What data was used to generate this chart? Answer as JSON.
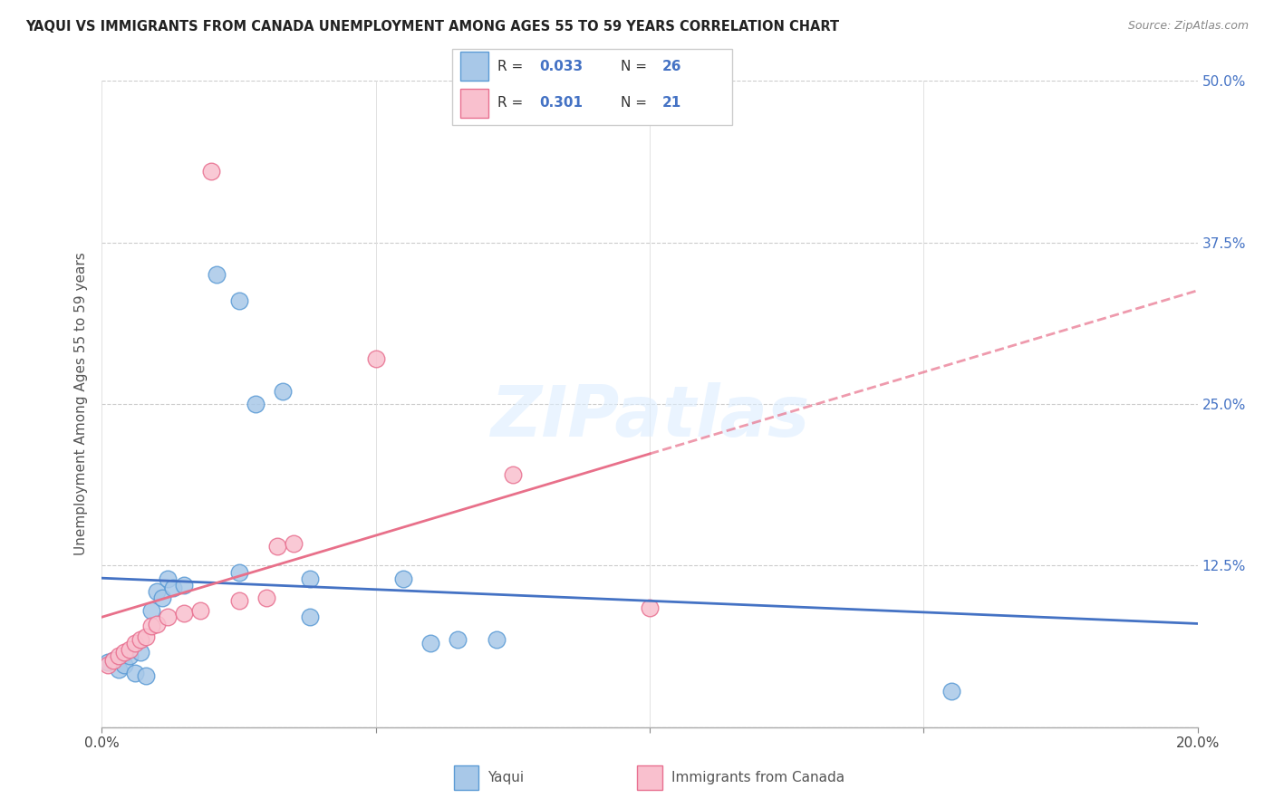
{
  "title": "YAQUI VS IMMIGRANTS FROM CANADA UNEMPLOYMENT AMONG AGES 55 TO 59 YEARS CORRELATION CHART",
  "source": "Source: ZipAtlas.com",
  "ylabel": "Unemployment Among Ages 55 to 59 years",
  "xlim": [
    0.0,
    0.2
  ],
  "ylim": [
    0.0,
    0.5
  ],
  "xticks": [
    0.0,
    0.05,
    0.1,
    0.15,
    0.2
  ],
  "yticks": [
    0.0,
    0.125,
    0.25,
    0.375,
    0.5
  ],
  "ytick_labels": [
    "",
    "12.5%",
    "25.0%",
    "37.5%",
    "50.0%"
  ],
  "xtick_labels": [
    "0.0%",
    "",
    "",
    "",
    "20.0%"
  ],
  "legend_r1": "0.033",
  "legend_n1": "26",
  "legend_r2": "0.301",
  "legend_n2": "21",
  "color_yaqui_fill": "#a8c8e8",
  "color_yaqui_edge": "#5b9bd5",
  "color_canada_fill": "#f9c0ce",
  "color_canada_edge": "#e87090",
  "line_color_yaqui": "#4472c4",
  "line_color_canada": "#e8708a",
  "yaqui_x": [
    0.001,
    0.002,
    0.003,
    0.004,
    0.005,
    0.006,
    0.007,
    0.008,
    0.009,
    0.01,
    0.011,
    0.012,
    0.013,
    0.015,
    0.021,
    0.025,
    0.028,
    0.033,
    0.038,
    0.055,
    0.06,
    0.065,
    0.072,
    0.038,
    0.025,
    0.155
  ],
  "yaqui_y": [
    0.05,
    0.052,
    0.045,
    0.048,
    0.055,
    0.042,
    0.058,
    0.04,
    0.09,
    0.105,
    0.1,
    0.115,
    0.108,
    0.11,
    0.35,
    0.33,
    0.25,
    0.26,
    0.115,
    0.115,
    0.065,
    0.068,
    0.068,
    0.085,
    0.12,
    0.028
  ],
  "canada_x": [
    0.001,
    0.002,
    0.003,
    0.004,
    0.005,
    0.006,
    0.007,
    0.008,
    0.009,
    0.01,
    0.012,
    0.015,
    0.018,
    0.02,
    0.025,
    0.03,
    0.032,
    0.035,
    0.05,
    0.075,
    0.1
  ],
  "canada_y": [
    0.048,
    0.052,
    0.055,
    0.058,
    0.06,
    0.065,
    0.068,
    0.07,
    0.078,
    0.08,
    0.085,
    0.088,
    0.09,
    0.43,
    0.098,
    0.1,
    0.14,
    0.142,
    0.285,
    0.195,
    0.092
  ]
}
